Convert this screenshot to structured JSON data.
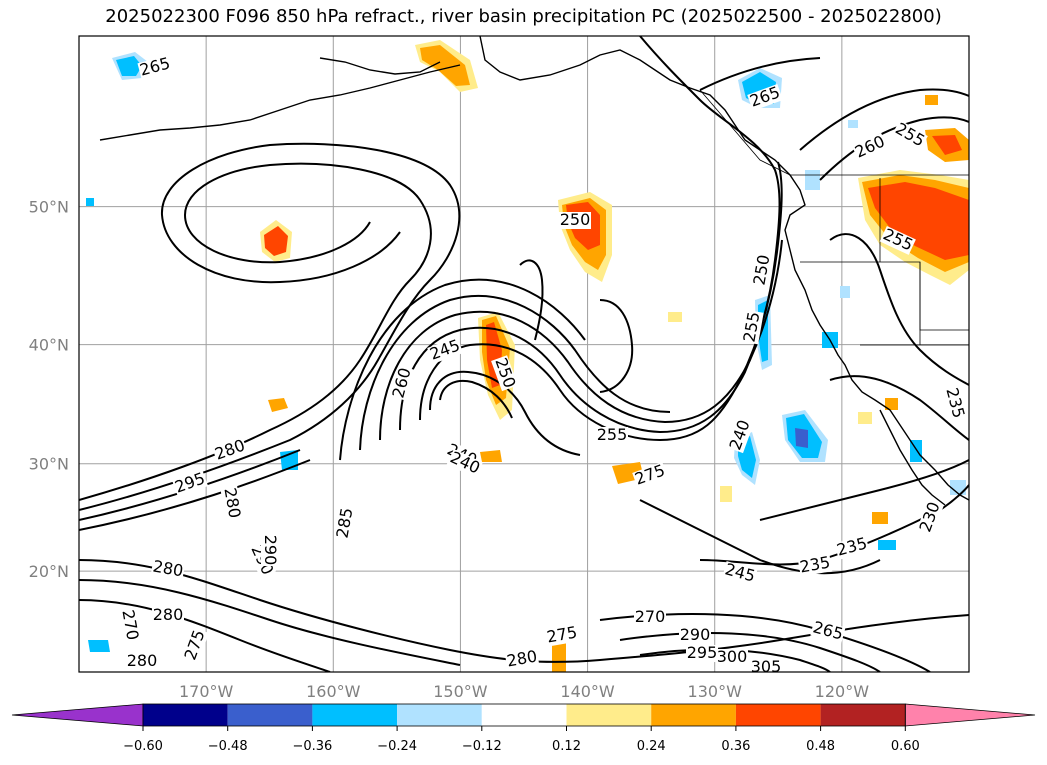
{
  "title": "2025022300 F096 850 hPa refract., river basin precipitation PC (2025022500 - 2025022800)",
  "map": {
    "lat_ticks": [
      {
        "label": "50°N",
        "lat": 50
      },
      {
        "label": "40°N",
        "lat": 40
      },
      {
        "label": "30°N",
        "lat": 30
      },
      {
        "label": "20°N",
        "lat": 20
      }
    ],
    "lon_ticks": [
      {
        "label": "170°W",
        "lon": -170
      },
      {
        "label": "160°W",
        "lon": -160
      },
      {
        "label": "150°W",
        "lon": -150
      },
      {
        "label": "140°W",
        "lon": -140
      },
      {
        "label": "130°W",
        "lon": -130
      },
      {
        "label": "120°W",
        "lon": -120
      }
    ],
    "extent": {
      "lon_min": -180,
      "lon_max": -110,
      "lat_min": 10,
      "lat_max": 60
    },
    "contour_labels": [
      "265",
      "265",
      "255",
      "260",
      "255",
      "250",
      "255",
      "250",
      "245",
      "250",
      "260",
      "255",
      "240",
      "240",
      "275",
      "280",
      "295",
      "280",
      "290",
      "280",
      "285",
      "280",
      "270",
      "275",
      "280",
      "275",
      "270",
      "280",
      "290",
      "295",
      "300",
      "305",
      "265",
      "245",
      "235",
      "235",
      "230",
      "235",
      "240",
      "290"
    ]
  },
  "colorbar": {
    "colors": [
      "#9932CC",
      "#00008B",
      "#3A5FCD",
      "#00BFFF",
      "#B0E2FF",
      "#FFFFFF",
      "#FFEC8B",
      "#FFA500",
      "#FF4500",
      "#B22222",
      "#FF82AB"
    ],
    "ticks": [
      "−0.60",
      "−0.48",
      "−0.36",
      "−0.24",
      "−0.12",
      "0.12",
      "0.24",
      "0.36",
      "0.48",
      "0.60"
    ]
  }
}
